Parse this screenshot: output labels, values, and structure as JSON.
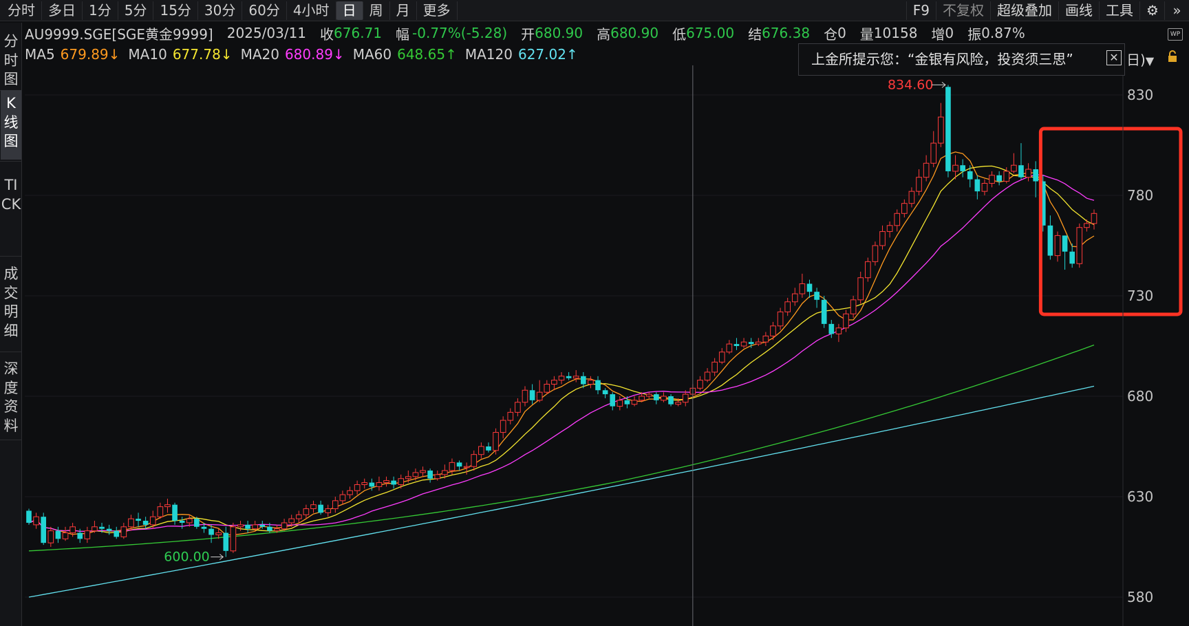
{
  "toolbar": {
    "periods": [
      "分时",
      "多日",
      "1分",
      "5分",
      "15分",
      "30分",
      "60分",
      "4小时",
      "日",
      "周",
      "月",
      "更多"
    ],
    "active_period": "日",
    "tools": [
      "F9",
      "不复权",
      "超级叠加",
      "画线",
      "工具"
    ],
    "icons": [
      "gear-icon",
      "double-chevron-right-icon"
    ]
  },
  "sidebar": {
    "tabs": [
      "分时图",
      "K线图",
      "TICK",
      "成交明细",
      "深度资料"
    ],
    "active": "K线图"
  },
  "quote": {
    "symbol": "AU9999.SGE[SGE黄金9999]",
    "date": "2025/03/11",
    "close_label": "收",
    "close": "676.71",
    "change_label": "幅",
    "change": "-0.77%(-5.28)",
    "open_label": "开",
    "open": "680.90",
    "high_label": "高",
    "high": "680.90",
    "low_label": "低",
    "low": "675.00",
    "settle_label": "结",
    "settle": "676.38",
    "oi_label": "仓",
    "oi": "0",
    "volume_label": "量",
    "volume": "10158",
    "inc_label": "增",
    "inc": "0",
    "amp_label": "振",
    "amp": "0.87%"
  },
  "ma_legend": [
    {
      "name": "MA5",
      "value": "679.89↓",
      "color": "#ff9a1f"
    },
    {
      "name": "MA10",
      "value": "677.78↓",
      "color": "#f5e630"
    },
    {
      "name": "MA20",
      "value": "680.89↓",
      "color": "#ff3dff"
    },
    {
      "name": "MA60",
      "value": "648.65↑",
      "color": "#35c935"
    },
    {
      "name": "MA120",
      "value": "627.02↑",
      "color": "#63e2f0"
    }
  ],
  "tip": {
    "text": "上金所提示您：“金银有风险，投资须三思”",
    "tail": "日)"
  },
  "colors": {
    "up": "#ff3b3b",
    "down": "#22d4d4",
    "background": "#0d0e10",
    "highlight": "#ff3324"
  },
  "chart_data": {
    "type": "candlestick",
    "ylabels": [
      "830",
      "780",
      "730",
      "680",
      "630",
      "580"
    ],
    "ylim": [
      575,
      835
    ],
    "max_label": "834.60",
    "min_label": "600.00",
    "candles": [
      [
        623,
        617,
        616,
        624
      ],
      [
        616,
        620,
        614,
        622
      ],
      [
        620,
        607,
        606,
        622
      ],
      [
        607,
        613,
        605,
        615
      ],
      [
        613,
        609,
        607,
        615
      ],
      [
        609,
        612,
        608,
        615
      ],
      [
        612,
        615,
        610,
        617
      ],
      [
        612,
        609,
        607,
        614
      ],
      [
        609,
        613,
        607,
        615
      ],
      [
        613,
        615,
        612,
        618
      ],
      [
        615,
        614,
        612,
        617
      ],
      [
        614,
        613,
        611,
        616
      ],
      [
        613,
        610,
        609,
        615
      ],
      [
        610,
        615,
        609,
        617
      ],
      [
        615,
        619,
        613,
        621
      ],
      [
        619,
        618,
        615,
        622
      ],
      [
        618,
        616,
        614,
        620
      ],
      [
        616,
        620,
        614,
        623
      ],
      [
        620,
        625,
        619,
        627
      ],
      [
        625,
        626,
        622,
        629
      ],
      [
        626,
        618,
        616,
        627
      ],
      [
        618,
        617,
        614,
        620
      ],
      [
        617,
        619,
        615,
        621
      ],
      [
        619,
        615,
        614,
        620
      ],
      [
        615,
        614,
        612,
        617
      ],
      [
        614,
        611,
        607,
        616
      ],
      [
        611,
        612,
        609,
        614
      ],
      [
        612,
        603,
        600,
        615
      ],
      [
        603,
        615,
        602,
        617
      ],
      [
        615,
        616,
        613,
        618
      ],
      [
        616,
        614,
        612,
        618
      ],
      [
        614,
        616,
        613,
        618
      ],
      [
        616,
        615,
        614,
        618
      ],
      [
        615,
        613,
        612,
        617
      ],
      [
        613,
        614,
        612,
        616
      ],
      [
        614,
        617,
        613,
        619
      ],
      [
        617,
        619,
        615,
        621
      ],
      [
        619,
        621,
        617,
        623
      ],
      [
        621,
        624,
        619,
        626
      ],
      [
        624,
        626,
        622,
        628
      ],
      [
        626,
        622,
        621,
        628
      ],
      [
        622,
        624,
        620,
        626
      ],
      [
        624,
        628,
        622,
        630
      ],
      [
        628,
        631,
        626,
        633
      ],
      [
        631,
        633,
        629,
        635
      ],
      [
        633,
        636,
        631,
        638
      ],
      [
        636,
        637,
        634,
        639
      ],
      [
        637,
        635,
        633,
        639
      ],
      [
        635,
        637,
        633,
        640
      ],
      [
        637,
        638,
        635,
        640
      ],
      [
        638,
        636,
        634,
        640
      ],
      [
        636,
        639,
        634,
        641
      ],
      [
        639,
        640,
        637,
        643
      ],
      [
        640,
        642,
        638,
        644
      ],
      [
        642,
        643,
        640,
        645
      ],
      [
        643,
        639,
        637,
        644
      ],
      [
        639,
        641,
        638,
        643
      ],
      [
        641,
        643,
        639,
        646
      ],
      [
        643,
        647,
        641,
        649
      ],
      [
        647,
        645,
        643,
        648
      ],
      [
        645,
        645,
        641,
        647
      ],
      [
        645,
        651,
        643,
        653
      ],
      [
        651,
        655,
        649,
        657
      ],
      [
        655,
        653,
        652,
        657
      ],
      [
        653,
        662,
        651,
        664
      ],
      [
        662,
        668,
        659,
        670
      ],
      [
        668,
        672,
        666,
        674
      ],
      [
        672,
        677,
        670,
        679
      ],
      [
        677,
        683,
        675,
        685
      ],
      [
        683,
        678,
        676,
        686
      ],
      [
        678,
        682,
        677,
        688
      ],
      [
        682,
        686,
        681,
        688
      ],
      [
        686,
        688,
        683,
        690
      ],
      [
        688,
        690,
        686,
        692
      ],
      [
        690,
        689,
        688,
        692
      ],
      [
        689,
        690,
        687,
        693
      ],
      [
        690,
        686,
        684,
        692
      ],
      [
        686,
        688,
        684,
        690
      ],
      [
        688,
        683,
        681,
        690
      ],
      [
        683,
        681,
        679,
        684
      ],
      [
        681,
        675,
        673,
        682
      ],
      [
        675,
        678,
        673,
        680
      ],
      [
        678,
        676,
        674,
        680
      ],
      [
        676,
        678,
        675,
        680
      ],
      [
        678,
        680,
        677,
        682
      ],
      [
        680,
        681,
        679,
        682
      ],
      [
        681,
        678,
        676,
        682
      ],
      [
        678,
        680,
        677,
        682
      ],
      [
        680,
        676,
        675,
        681
      ],
      [
        676,
        677,
        675,
        679
      ],
      [
        677,
        681,
        675,
        683
      ],
      [
        681,
        684,
        680,
        686
      ],
      [
        684,
        688,
        683,
        690
      ],
      [
        688,
        692,
        687,
        694
      ],
      [
        692,
        697,
        690,
        699
      ],
      [
        697,
        702,
        696,
        704
      ],
      [
        702,
        706,
        701,
        708
      ],
      [
        706,
        705,
        703,
        709
      ],
      [
        705,
        707,
        704,
        709
      ],
      [
        707,
        706,
        704,
        709
      ],
      [
        706,
        707,
        705,
        709
      ],
      [
        707,
        710,
        705,
        712
      ],
      [
        710,
        715,
        708,
        717
      ],
      [
        715,
        722,
        713,
        724
      ],
      [
        722,
        727,
        720,
        729
      ],
      [
        727,
        731,
        725,
        734
      ],
      [
        731,
        736,
        729,
        741
      ],
      [
        736,
        732,
        729,
        738
      ],
      [
        732,
        728,
        724,
        734
      ],
      [
        728,
        716,
        714,
        730
      ],
      [
        716,
        711,
        709,
        718
      ],
      [
        711,
        714,
        707,
        716
      ],
      [
        714,
        721,
        712,
        723
      ],
      [
        721,
        728,
        719,
        730
      ],
      [
        728,
        739,
        726,
        742
      ],
      [
        739,
        747,
        737,
        749
      ],
      [
        747,
        755,
        745,
        757
      ],
      [
        755,
        762,
        753,
        765
      ],
      [
        762,
        765,
        759,
        767
      ],
      [
        765,
        771,
        762,
        773
      ],
      [
        771,
        776,
        769,
        778
      ],
      [
        776,
        782,
        774,
        784
      ],
      [
        782,
        789,
        780,
        793
      ],
      [
        789,
        796,
        787,
        800
      ],
      [
        796,
        806,
        794,
        812
      ],
      [
        806,
        819,
        804,
        826
      ],
      [
        834,
        792,
        789,
        835
      ],
      [
        792,
        795,
        788,
        800
      ],
      [
        795,
        792,
        789,
        798
      ],
      [
        792,
        788,
        784,
        795
      ],
      [
        788,
        782,
        778,
        790
      ],
      [
        782,
        786,
        780,
        788
      ],
      [
        786,
        790,
        784,
        792
      ],
      [
        790,
        787,
        785,
        792
      ],
      [
        787,
        792,
        786,
        794
      ],
      [
        792,
        795,
        791,
        801
      ],
      [
        795,
        789,
        788,
        806
      ],
      [
        789,
        793,
        787,
        796
      ],
      [
        793,
        787,
        779,
        797
      ],
      [
        787,
        765,
        762,
        790
      ],
      [
        765,
        750,
        748,
        770
      ],
      [
        750,
        760,
        747,
        762
      ],
      [
        760,
        752,
        743,
        760
      ],
      [
        752,
        746,
        744,
        756
      ],
      [
        746,
        764,
        744,
        766
      ],
      [
        764,
        766,
        762,
        768
      ],
      [
        766,
        771,
        763,
        773
      ]
    ],
    "series": [
      {
        "name": "MA5",
        "color": "#ff9a1f"
      },
      {
        "name": "MA10",
        "color": "#f5e630"
      },
      {
        "name": "MA20",
        "color": "#ff3dff"
      },
      {
        "name": "MA60",
        "color": "#35c935"
      },
      {
        "name": "MA120",
        "color": "#63e2f0"
      }
    ],
    "highlight_range": [
      140,
      146
    ]
  }
}
